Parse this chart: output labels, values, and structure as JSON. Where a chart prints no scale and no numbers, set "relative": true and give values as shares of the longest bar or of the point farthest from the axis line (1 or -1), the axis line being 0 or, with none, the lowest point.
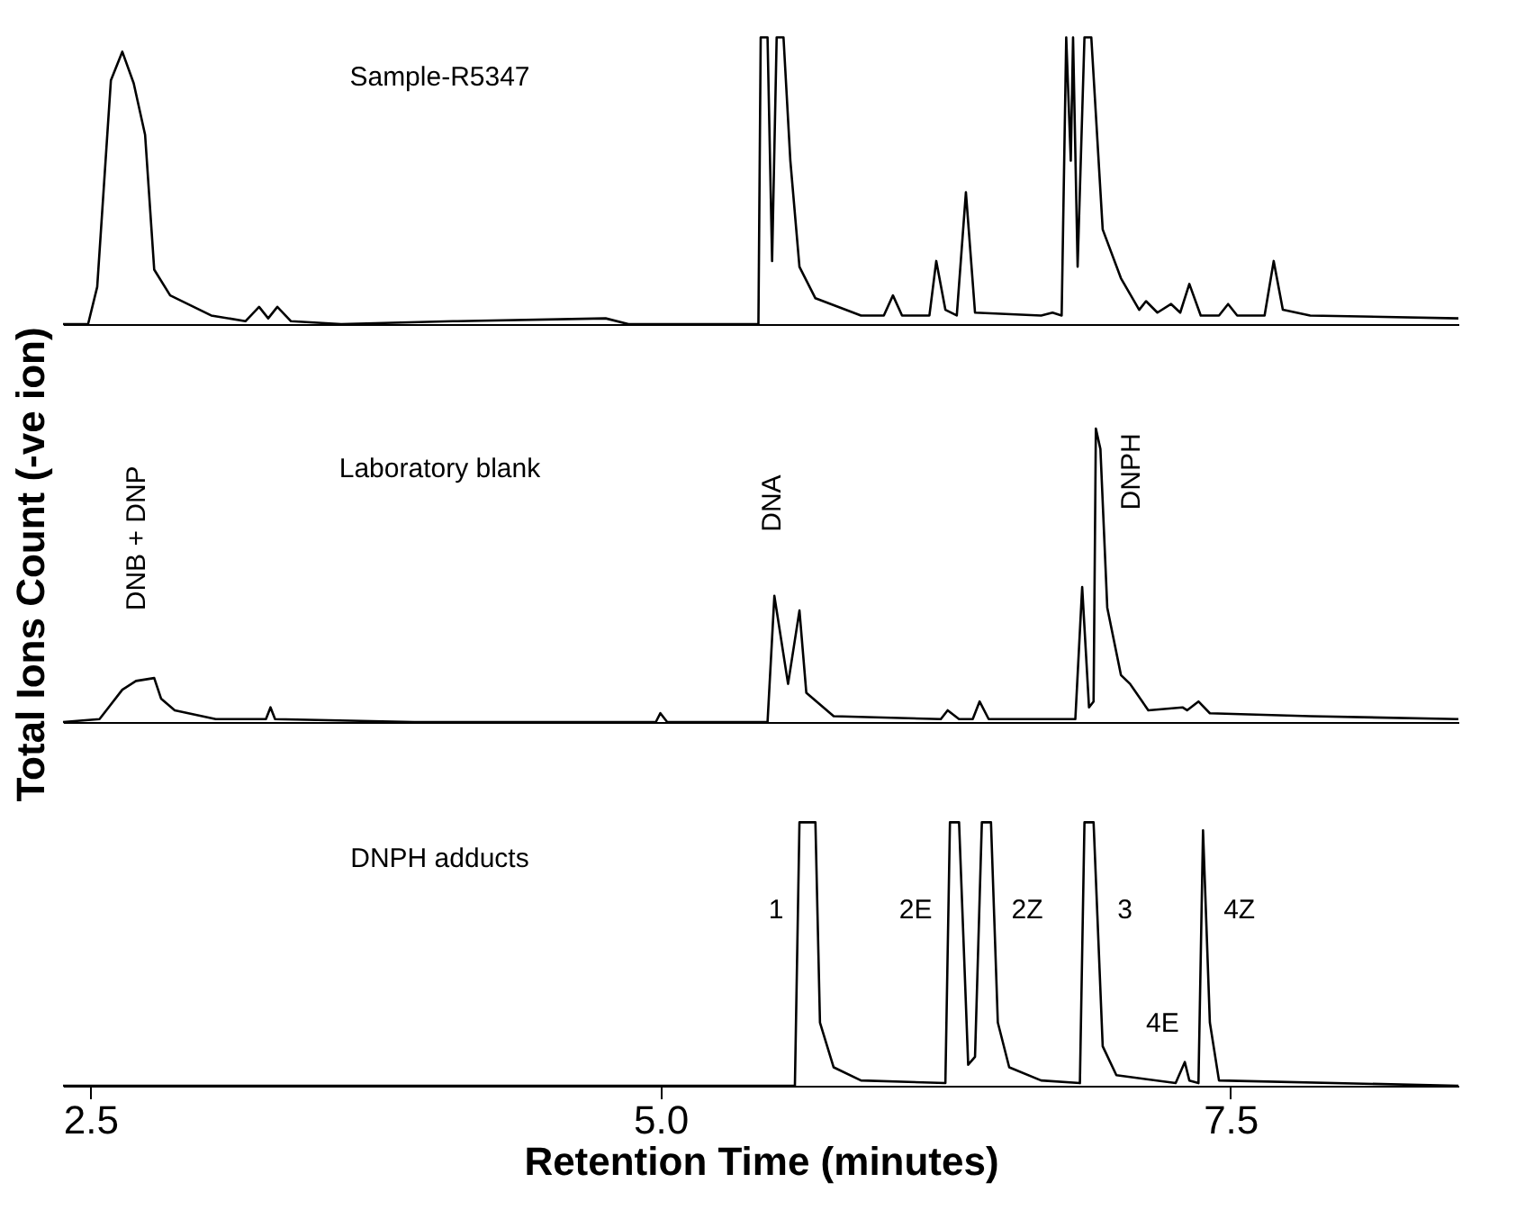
{
  "chart_data": [
    {
      "type": "line",
      "relative": true,
      "xlim": [
        2.38,
        8.5
      ],
      "tick_labels": false,
      "grid": false,
      "annotations": [
        "Sample-R5347"
      ],
      "series": [
        {
          "color": "#000000",
          "x": [
            2.38,
            2.49,
            2.53,
            2.59,
            2.64,
            2.69,
            2.74,
            2.78,
            2.85,
            3.03,
            3.18,
            3.24,
            3.28,
            3.32,
            3.38,
            3.6,
            4.09,
            4.76,
            4.86,
            5.43,
            5.44,
            5.47,
            5.49,
            5.51,
            5.54,
            5.57,
            5.61,
            5.68,
            5.88,
            5.98,
            6.02,
            6.06,
            6.18,
            6.21,
            6.25,
            6.3,
            6.34,
            6.38,
            6.67,
            6.72,
            6.76,
            6.78,
            6.8,
            6.81,
            6.83,
            6.86,
            6.89,
            6.94,
            7.02,
            7.1,
            7.13,
            7.18,
            7.24,
            7.28,
            7.32,
            7.37,
            7.45,
            7.49,
            7.53,
            7.65,
            7.69,
            7.73,
            7.85,
            8.5
          ],
          "values": [
            0,
            0,
            0.13,
            0.85,
            0.95,
            0.84,
            0.66,
            0.19,
            0.1,
            0.03,
            0.01,
            0.06,
            0.02,
            0.06,
            0.01,
            0,
            0.01,
            0.02,
            0,
            0,
            1,
            1,
            0.22,
            1,
            1,
            0.57,
            0.2,
            0.09,
            0.03,
            0.03,
            0.1,
            0.03,
            0.03,
            0.22,
            0.05,
            0.03,
            0.46,
            0.04,
            0.03,
            0.04,
            0.03,
            1,
            0.57,
            1,
            0.2,
            1,
            1,
            0.33,
            0.16,
            0.05,
            0.08,
            0.04,
            0.07,
            0.04,
            0.14,
            0.03,
            0.03,
            0.07,
            0.03,
            0.03,
            0.22,
            0.05,
            0.03,
            0.02
          ]
        }
      ]
    },
    {
      "type": "line",
      "relative": true,
      "xlim": [
        2.38,
        8.5
      ],
      "tick_labels": false,
      "grid": false,
      "ylabel": "Total Ions Count (-ve ion)",
      "annotations": [
        "Laboratory blank",
        "DNB + DNP",
        "DNA",
        "DNPH"
      ],
      "series": [
        {
          "color": "#000000",
          "x": [
            2.38,
            2.54,
            2.58,
            2.64,
            2.7,
            2.78,
            2.81,
            2.87,
            3.05,
            3.27,
            3.29,
            3.31,
            3.92,
            4.98,
            5.0,
            5.03,
            5.47,
            5.5,
            5.56,
            5.61,
            5.64,
            5.76,
            6.23,
            6.26,
            6.31,
            6.37,
            6.4,
            6.44,
            6.82,
            6.85,
            6.88,
            6.9,
            6.91,
            6.93,
            6.96,
            7.02,
            7.06,
            7.14,
            7.29,
            7.31,
            7.36,
            7.41,
            7.85,
            8.5
          ],
          "values": [
            0,
            0.01,
            0.05,
            0.11,
            0.14,
            0.15,
            0.08,
            0.04,
            0.01,
            0.01,
            0.05,
            0.01,
            0,
            0,
            0.03,
            0,
            0,
            0.43,
            0.13,
            0.38,
            0.1,
            0.02,
            0.01,
            0.04,
            0.01,
            0.01,
            0.07,
            0.01,
            0.01,
            0.46,
            0.05,
            0.07,
            1,
            0.93,
            0.39,
            0.16,
            0.13,
            0.04,
            0.05,
            0.04,
            0.07,
            0.03,
            0.02,
            0.01
          ]
        }
      ]
    },
    {
      "type": "line",
      "relative": true,
      "xlim": [
        2.38,
        8.5
      ],
      "xticks": [
        2.5,
        {
          "value": 5,
          "label": "5.0"
        },
        7.5
      ],
      "tick_labels": "x",
      "grid": false,
      "xlabel": "Retention Time (minutes)",
      "annotations": [
        "DNPH adducts",
        "1",
        "2E",
        "2Z",
        "3",
        "4E",
        "4Z"
      ],
      "series": [
        {
          "color": "#000000",
          "x": [
            2.38,
            5.59,
            5.61,
            5.68,
            5.7,
            5.76,
            5.88,
            6.25,
            6.27,
            6.31,
            6.35,
            6.38,
            6.41,
            6.45,
            6.48,
            6.53,
            6.67,
            6.84,
            6.86,
            6.9,
            6.94,
            7.0,
            7.26,
            7.3,
            7.32,
            7.36,
            7.38,
            7.41,
            7.45,
            8.5
          ],
          "values": [
            0,
            0,
            1,
            1,
            0.24,
            0.07,
            0.02,
            0.01,
            1,
            1,
            0.08,
            0.11,
            1,
            1,
            0.24,
            0.07,
            0.02,
            0.01,
            1,
            1,
            0.15,
            0.04,
            0.01,
            0.09,
            0.02,
            0.01,
            0.97,
            0.24,
            0.02,
            0
          ]
        }
      ]
    }
  ]
}
